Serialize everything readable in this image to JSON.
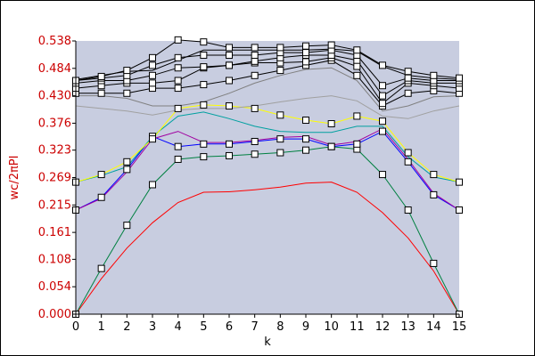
{
  "chart_data": {
    "type": "line",
    "xlabel": "k",
    "ylabel": "wc/2πPI",
    "xlim": [
      0,
      15
    ],
    "ylim": [
      0,
      0.538
    ],
    "x_ticks": [
      "0",
      "1",
      "2",
      "3",
      "4",
      "5",
      "6",
      "7",
      "8",
      "9",
      "10",
      "11",
      "12",
      "13",
      "14",
      "15"
    ],
    "y_ticks": [
      "0.000",
      "0.054",
      "0.108",
      "0.161",
      "0.215",
      "0.269",
      "0.323",
      "0.376",
      "0.430",
      "0.484",
      "0.538"
    ],
    "y_tick_values": [
      0,
      0.054,
      0.108,
      0.161,
      0.215,
      0.269,
      0.323,
      0.376,
      0.43,
      0.484,
      0.538
    ],
    "grid": false,
    "colors": {
      "plot_background": "#c8cde0",
      "axis_text": "#cc0000",
      "axis_line": "#000000"
    },
    "x": [
      0,
      1,
      2,
      3,
      4,
      5,
      6,
      7,
      8,
      9,
      10,
      11,
      12,
      13,
      14,
      15
    ],
    "series": [
      {
        "color": "#ff0000",
        "markers": false,
        "values": [
          0.0,
          0.07,
          0.13,
          0.18,
          0.22,
          0.24,
          0.241,
          0.245,
          0.25,
          0.258,
          0.26,
          0.24,
          0.2,
          0.15,
          0.085,
          0.0
        ]
      },
      {
        "color": "#008040",
        "markers": true,
        "values": [
          0.0,
          0.09,
          0.175,
          0.255,
          0.305,
          0.31,
          0.312,
          0.315,
          0.318,
          0.323,
          0.33,
          0.325,
          0.275,
          0.205,
          0.1,
          0.0
        ]
      },
      {
        "color": "#0000ff",
        "markers": true,
        "values": [
          0.205,
          0.23,
          0.285,
          0.35,
          0.33,
          0.335,
          0.335,
          0.34,
          0.345,
          0.345,
          0.33,
          0.335,
          0.36,
          0.3,
          0.235,
          0.205
        ]
      },
      {
        "color": "#a000a0",
        "markers": false,
        "values": [
          0.205,
          0.228,
          0.28,
          0.345,
          0.36,
          0.338,
          0.338,
          0.342,
          0.348,
          0.35,
          0.333,
          0.34,
          0.365,
          0.305,
          0.238,
          0.205
        ]
      },
      {
        "color": "#00a0a0",
        "markers": false,
        "values": [
          0.26,
          0.273,
          0.29,
          0.35,
          0.39,
          0.398,
          0.385,
          0.37,
          0.36,
          0.358,
          0.358,
          0.37,
          0.37,
          0.31,
          0.27,
          0.26
        ]
      },
      {
        "color": "#ffff00",
        "markers": true,
        "values": [
          0.26,
          0.275,
          0.3,
          0.345,
          0.405,
          0.412,
          0.41,
          0.405,
          0.392,
          0.382,
          0.375,
          0.39,
          0.38,
          0.318,
          0.275,
          0.26
        ]
      },
      {
        "color": "#a0a0a0",
        "markers": false,
        "values": [
          0.41,
          0.405,
          0.4,
          0.392,
          0.402,
          0.405,
          0.405,
          0.41,
          0.418,
          0.425,
          0.43,
          0.42,
          0.39,
          0.385,
          0.4,
          0.41
        ]
      },
      {
        "color": "#808080",
        "markers": false,
        "values": [
          0.43,
          0.43,
          0.425,
          0.41,
          0.41,
          0.418,
          0.435,
          0.455,
          0.47,
          0.482,
          0.485,
          0.46,
          0.4,
          0.41,
          0.428,
          0.43
        ]
      },
      {
        "color": "#000000",
        "markers": true,
        "values": [
          0.435,
          0.435,
          0.435,
          0.445,
          0.445,
          0.452,
          0.46,
          0.47,
          0.48,
          0.49,
          0.5,
          0.47,
          0.41,
          0.435,
          0.44,
          0.435
        ]
      },
      {
        "color": "#000000",
        "markers": true,
        "values": [
          0.445,
          0.45,
          0.455,
          0.455,
          0.46,
          0.485,
          0.49,
          0.495,
          0.495,
          0.497,
          0.505,
          0.488,
          0.415,
          0.455,
          0.45,
          0.445
        ]
      },
      {
        "color": "#000000",
        "markers": true,
        "values": [
          0.455,
          0.46,
          0.46,
          0.47,
          0.485,
          0.487,
          0.49,
          0.498,
          0.505,
          0.51,
          0.51,
          0.5,
          0.43,
          0.46,
          0.455,
          0.455
        ]
      },
      {
        "color": "#000000",
        "markers": true,
        "values": [
          0.46,
          0.465,
          0.47,
          0.49,
          0.505,
          0.51,
          0.51,
          0.51,
          0.515,
          0.515,
          0.52,
          0.51,
          0.45,
          0.465,
          0.46,
          0.46
        ]
      },
      {
        "color": "#000000",
        "markers": true,
        "values": [
          0.46,
          0.468,
          0.48,
          0.505,
          0.54,
          0.536,
          0.525,
          0.525,
          0.525,
          0.528,
          0.53,
          0.52,
          0.49,
          0.478,
          0.47,
          0.465
        ]
      },
      {
        "color": "#000000",
        "markers": false,
        "values": [
          0.462,
          0.47,
          0.478,
          0.48,
          0.5,
          0.52,
          0.52,
          0.52,
          0.52,
          0.52,
          0.522,
          0.518,
          0.488,
          0.47,
          0.465,
          0.462
        ]
      }
    ]
  }
}
